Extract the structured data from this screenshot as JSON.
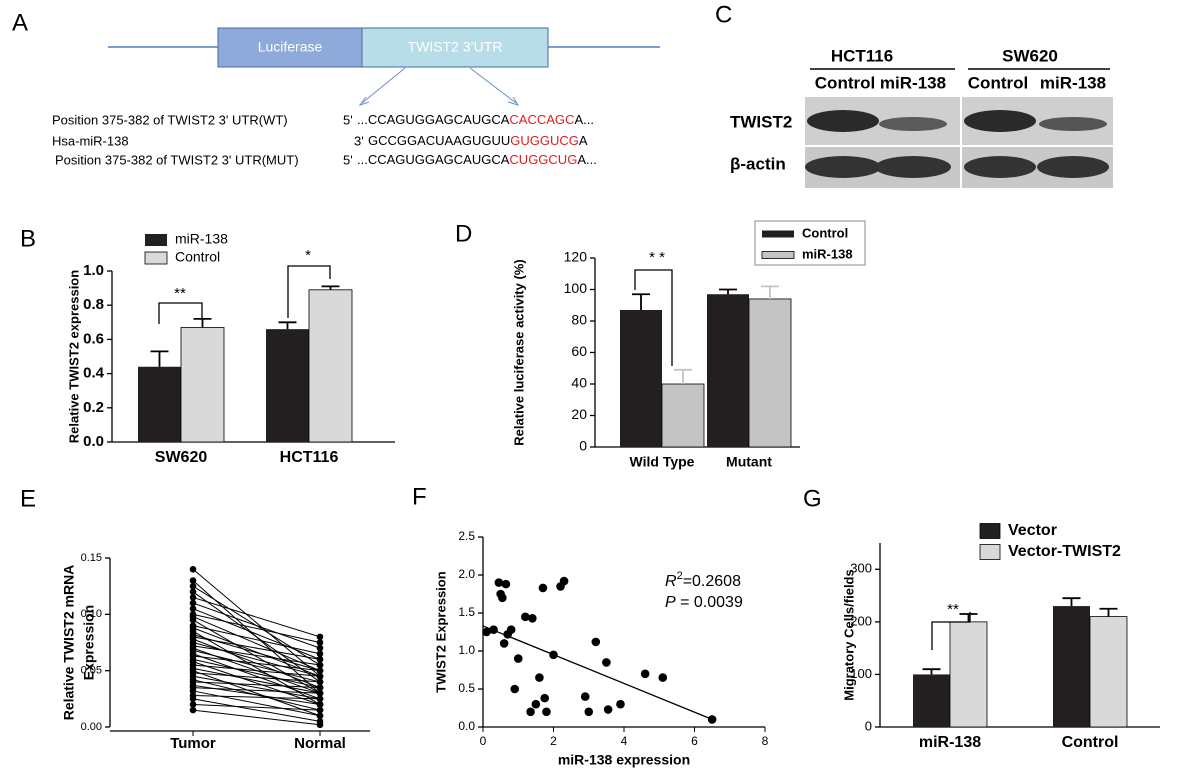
{
  "panel_a": {
    "label": "A",
    "box1": "Luciferase",
    "box2": "TWIST2 3’UTR",
    "rows": [
      {
        "name": "Position 375-382 of TWIST2 3' UTR(WT)",
        "end": "5'",
        "seq": "...CCAGUGGAGCAUGCA",
        "site": "CACCAGC",
        "tail": "A..."
      },
      {
        "name": "Hsa-miR-138",
        "end": "3'",
        "seq": "GCCGGACUAAGUGUU",
        "site": "GUGGUCG",
        "tail": "A"
      },
      {
        "name": "Position 375-382 of TWIST2 3' UTR(MUT)",
        "end": "5'",
        "seq": "...CCAGUGGAGCAUGCA",
        "site": "CUGGCUG",
        "tail": "A..."
      }
    ]
  },
  "panel_c": {
    "label": "C",
    "groups": [
      "HCT116",
      "SW620"
    ],
    "lanes": [
      "Control",
      "miR-138",
      "Control",
      "miR-138"
    ],
    "rows": [
      "TWIST2",
      "β-actin"
    ]
  },
  "chart_data": [
    {
      "type": "bar",
      "label": "B",
      "ylabel": "Relative TWIST2 expression",
      "categories": [
        "SW620",
        "HCT116"
      ],
      "series": [
        {
          "name": "miR-138",
          "color": "#231f20",
          "values": [
            0.44,
            0.66
          ],
          "errors": [
            0.09,
            0.04
          ]
        },
        {
          "name": "Control",
          "color": "#d9d9d9",
          "values": [
            0.67,
            0.89
          ],
          "errors": [
            0.05,
            0.02
          ]
        }
      ],
      "ylim": [
        0,
        1.0
      ],
      "yticks": [
        {
          "value": 0,
          "label": "0.0"
        },
        0.2,
        0.4,
        0.6,
        0.8,
        {
          "value": 1.0,
          "label": "1.0"
        }
      ],
      "annotations": [
        "**",
        "*"
      ],
      "legend": "upper left"
    },
    {
      "type": "bar",
      "label": "D",
      "ylabel": "Relative luciferase activity (%)",
      "categories": [
        "Wild Type",
        "Mutant"
      ],
      "series": [
        {
          "name": "Control",
          "color": "#231f20",
          "values": [
            87,
            97
          ],
          "errors": [
            10,
            3
          ]
        },
        {
          "name": "miR-138",
          "color": "#c4c4c4",
          "values": [
            40,
            94
          ],
          "errors": [
            9,
            8
          ]
        }
      ],
      "ylim": [
        0,
        120
      ],
      "yticks": [
        0,
        20,
        40,
        60,
        80,
        100,
        120
      ],
      "annotations": [
        "* *"
      ],
      "legend": "upper right"
    },
    {
      "type": "paired",
      "label": "E",
      "ylabel": [
        "Relative TWIST2 mRNA",
        "Expression"
      ],
      "categories": [
        "Tumor",
        "Normal"
      ],
      "color": "#000000",
      "pairs": [
        [
          0.14,
          0.045
        ],
        [
          0.13,
          0.03
        ],
        [
          0.125,
          0.055
        ],
        [
          0.12,
          0.04
        ],
        [
          0.115,
          0.08
        ],
        [
          0.11,
          0.07
        ],
        [
          0.105,
          0.06
        ],
        [
          0.1,
          0.075
        ],
        [
          0.098,
          0.05
        ],
        [
          0.095,
          0.03
        ],
        [
          0.09,
          0.065
        ],
        [
          0.088,
          0.045
        ],
        [
          0.085,
          0.02
        ],
        [
          0.082,
          0.05
        ],
        [
          0.08,
          0.06
        ],
        [
          0.078,
          0.035
        ],
        [
          0.075,
          0.045
        ],
        [
          0.072,
          0.055
        ],
        [
          0.07,
          0.03
        ],
        [
          0.068,
          0.04
        ],
        [
          0.065,
          0.025
        ],
        [
          0.063,
          0.05
        ],
        [
          0.06,
          0.035
        ],
        [
          0.058,
          0.02
        ],
        [
          0.055,
          0.045
        ],
        [
          0.052,
          0.03
        ],
        [
          0.05,
          0.01
        ],
        [
          0.048,
          0.04
        ],
        [
          0.045,
          0.025
        ],
        [
          0.042,
          0.015
        ],
        [
          0.04,
          0.035
        ],
        [
          0.037,
          0.02
        ],
        [
          0.035,
          0.03
        ],
        [
          0.032,
          0.01
        ],
        [
          0.028,
          0.025
        ],
        [
          0.025,
          0.005
        ],
        [
          0.02,
          0.015
        ],
        [
          0.015,
          0.002
        ]
      ],
      "ylim": [
        0,
        0.15
      ],
      "yticks": [
        {
          "value": 0,
          "label": "0.00"
        },
        {
          "value": 0.05,
          "label": "0.05"
        },
        {
          "value": 0.1,
          "label": "0.10"
        },
        {
          "value": 0.15,
          "label": "0.15"
        }
      ]
    },
    {
      "type": "scatter",
      "label": "F",
      "xlabel": "miR-138 expression",
      "ylabel": "TWIST2 Expression",
      "color": "#000000",
      "x": [
        0.1,
        0.3,
        0.45,
        0.5,
        0.55,
        0.6,
        0.65,
        0.7,
        0.8,
        0.9,
        1.0,
        1.2,
        1.35,
        1.4,
        1.5,
        1.6,
        1.7,
        1.75,
        1.8,
        2.0,
        2.2,
        2.3,
        2.9,
        3.0,
        3.2,
        3.5,
        3.55,
        3.9,
        4.6,
        5.1,
        6.5
      ],
      "y": [
        1.25,
        1.28,
        1.9,
        1.75,
        1.7,
        1.1,
        1.88,
        1.22,
        1.28,
        0.5,
        0.9,
        1.45,
        0.2,
        1.43,
        0.3,
        0.65,
        1.83,
        0.38,
        0.2,
        0.95,
        1.85,
        1.92,
        0.4,
        0.2,
        1.12,
        0.85,
        0.23,
        0.3,
        0.7,
        0.65,
        0.1
      ],
      "fit": {
        "x": [
          0,
          6.5
        ],
        "y": [
          1.33,
          0.1
        ]
      },
      "r2": {
        "symbol": "R",
        "sup": "2",
        "text": "=0.2608"
      },
      "p": {
        "symbol": "P",
        "text": " = 0.0039"
      },
      "xlim": [
        0,
        8
      ],
      "xticks": [
        0,
        2,
        4,
        6,
        8
      ],
      "ylim": [
        0,
        2.5
      ],
      "yticks": [
        {
          "value": 0,
          "label": "0.0"
        },
        0.5,
        {
          "value": 1,
          "label": "1.0"
        },
        1.5,
        {
          "value": 2,
          "label": "2.0"
        },
        2.5
      ]
    },
    {
      "type": "bar",
      "label": "G",
      "ylabel": "Migratory Cells/fields",
      "categories": [
        "miR-138",
        "Control"
      ],
      "series": [
        {
          "name": "Vector",
          "color": "#231f20",
          "values": [
            100,
            230
          ],
          "errors": [
            10,
            15
          ]
        },
        {
          "name": "Vector-TWIST2",
          "color": "#d9d9d9",
          "values": [
            200,
            210
          ],
          "errors": [
            15,
            15
          ]
        }
      ],
      "ylim": [
        0,
        350
      ],
      "yticks": [
        0,
        100,
        200,
        300
      ],
      "annotations": [
        "**"
      ],
      "legend": "upper left"
    }
  ]
}
